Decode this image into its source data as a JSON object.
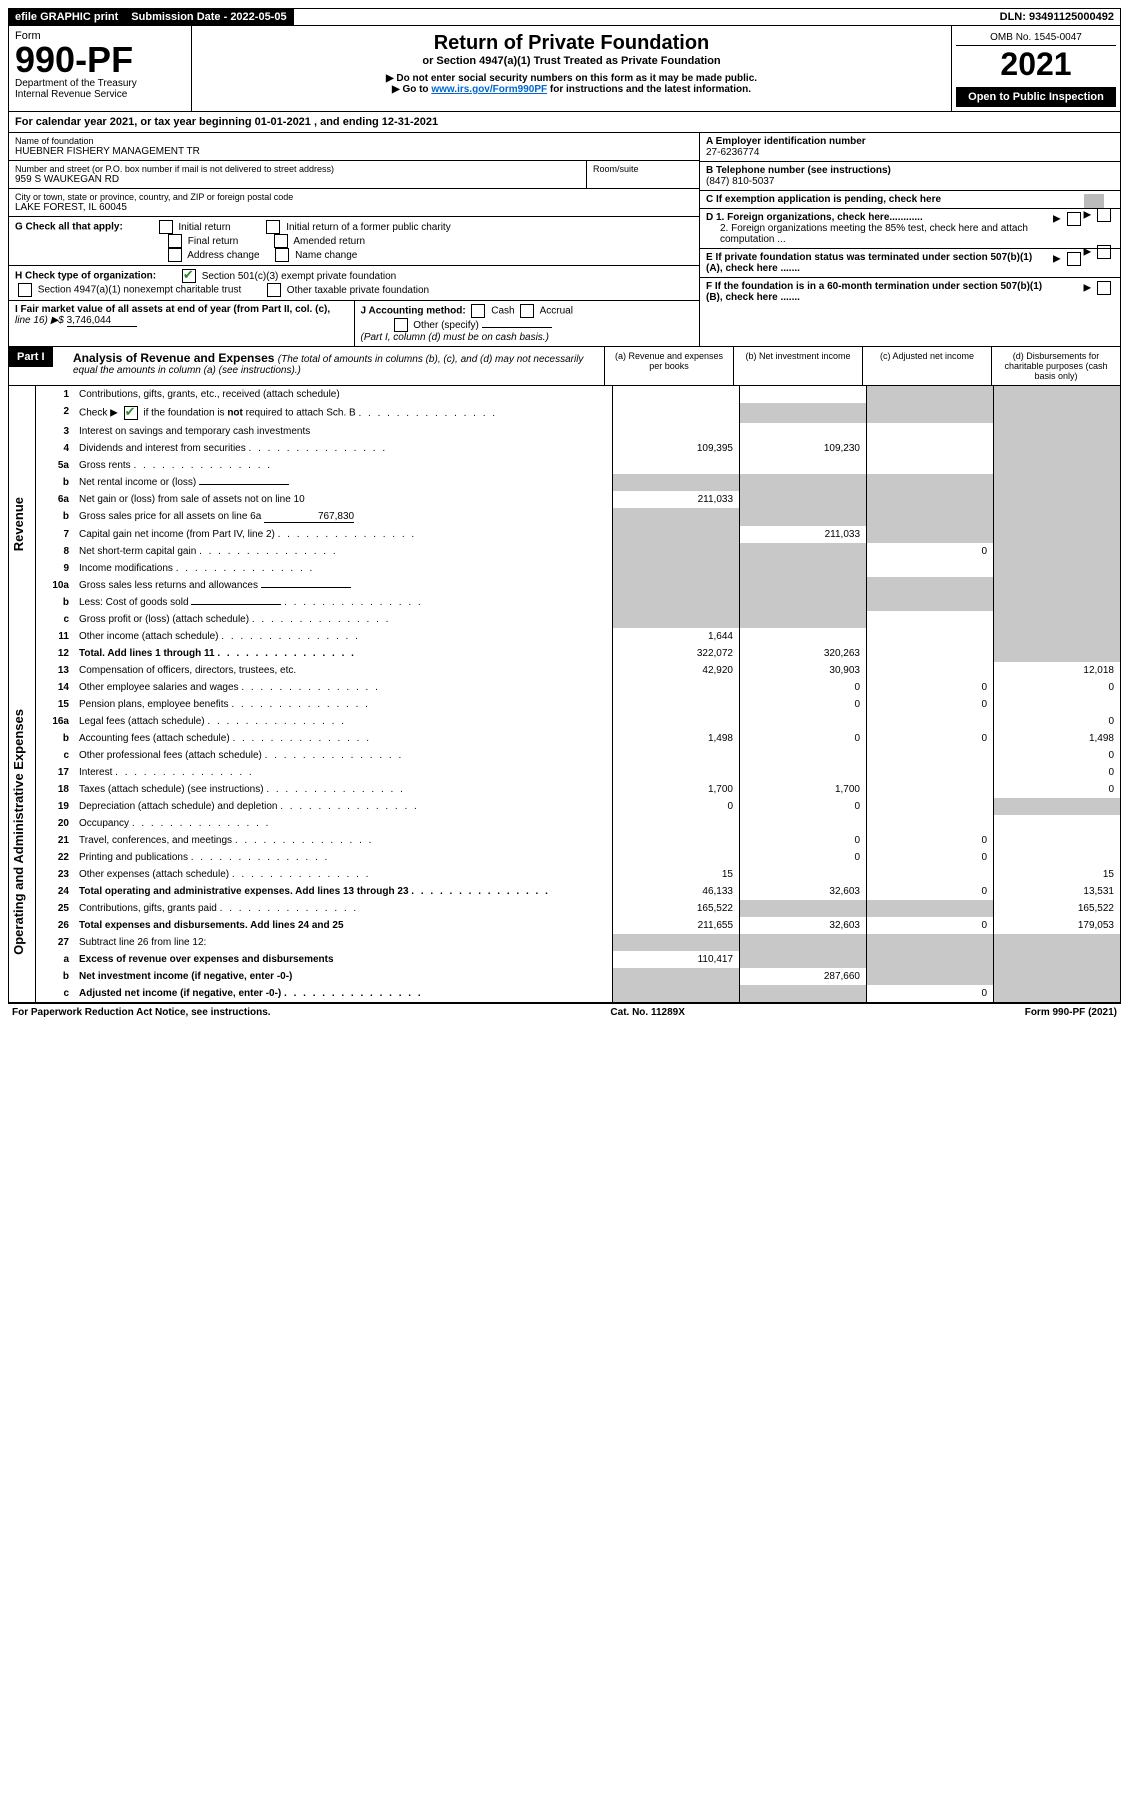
{
  "top": {
    "efile": "efile GRAPHIC print",
    "sub_label": "Submission Date - 2022-05-05",
    "dln": "DLN: 93491125000492"
  },
  "header": {
    "form_label": "Form",
    "form_no": "990-PF",
    "dept": "Department of the Treasury",
    "irs": "Internal Revenue Service",
    "title": "Return of Private Foundation",
    "subtitle": "or Section 4947(a)(1) Trust Treated as Private Foundation",
    "note1": "▶ Do not enter social security numbers on this form as it may be made public.",
    "note2_pre": "▶ Go to ",
    "note2_link": "www.irs.gov/Form990PF",
    "note2_post": " for instructions and the latest information.",
    "omb": "OMB No. 1545-0047",
    "year": "2021",
    "open": "Open to Public Inspection"
  },
  "calyear": "For calendar year 2021, or tax year beginning 01-01-2021            , and ending 12-31-2021",
  "entity": {
    "name_label": "Name of foundation",
    "name": "HUEBNER FISHERY MANAGEMENT TR",
    "addr_label": "Number and street (or P.O. box number if mail is not delivered to street address)",
    "addr": "959 S WAUKEGAN RD",
    "room_label": "Room/suite",
    "city_label": "City or town, state or province, country, and ZIP or foreign postal code",
    "city": "LAKE FOREST, IL  60045"
  },
  "right": {
    "a_label": "A Employer identification number",
    "a_val": "27-6236774",
    "b_label": "B Telephone number (see instructions)",
    "b_val": "(847) 810-5037",
    "c_label": "C If exemption application is pending, check here",
    "d1": "D 1. Foreign organizations, check here............",
    "d2": "2. Foreign organizations meeting the 85% test, check here and attach computation ...",
    "e": "E  If private foundation status was terminated under section 507(b)(1)(A), check here .......",
    "f": "F  If the foundation is in a 60-month termination under section 507(b)(1)(B), check here .......",
    "arrow": "▶"
  },
  "g": {
    "label": "G Check all that apply:",
    "opts": [
      "Initial return",
      "Final return",
      "Address change",
      "Initial return of a former public charity",
      "Amended return",
      "Name change"
    ]
  },
  "h": {
    "label": "H Check type of organization:",
    "opt1": "Section 501(c)(3) exempt private foundation",
    "opt2": "Section 4947(a)(1) nonexempt charitable trust",
    "opt3": "Other taxable private foundation"
  },
  "i": {
    "label": "I Fair market value of all assets at end of year (from Part II, col. (c),",
    "line16": "line 16) ▶$ ",
    "val": "3,746,044"
  },
  "j": {
    "label": "J Accounting method:",
    "cash": "Cash",
    "accrual": "Accrual",
    "other": "Other (specify)",
    "note": "(Part I, column (d) must be on cash basis.)"
  },
  "part1": {
    "label": "Part I",
    "title": "Analysis of Revenue and Expenses ",
    "note": "(The total of amounts in columns (b), (c), and (d) may not necessarily equal the amounts in column (a) (see instructions).)",
    "cols": {
      "a": "(a)   Revenue and expenses per books",
      "b": "(b)   Net investment income",
      "c": "(c)   Adjusted net income",
      "d": "(d)   Disbursements for charitable purposes (cash basis only)"
    }
  },
  "sections": {
    "revenue": "Revenue",
    "expenses": "Operating and Administrative Expenses"
  },
  "rows": [
    {
      "n": "1",
      "d": "Contributions, gifts, grants, etc., received (attach schedule)",
      "a": "",
      "b": "",
      "c": "s",
      "ds": "s"
    },
    {
      "n": "2",
      "d": "Check ▶ [v] if the foundation is not required to attach Sch. B",
      "dot": true,
      "a": "",
      "b": "s",
      "c": "s",
      "ds": "s"
    },
    {
      "n": "3",
      "d": "Interest on savings and temporary cash investments",
      "a": "",
      "b": "",
      "c": "",
      "ds": "s"
    },
    {
      "n": "4",
      "d": "Dividends and interest from securities",
      "dot": true,
      "a": "109,395",
      "b": "109,230",
      "c": "",
      "ds": "s"
    },
    {
      "n": "5a",
      "d": "Gross rents",
      "dot": true,
      "a": "",
      "b": "",
      "c": "",
      "ds": "s"
    },
    {
      "n": "b",
      "d": "Net rental income or (loss)",
      "inline": "",
      "a": "s",
      "b": "s",
      "c": "s",
      "ds": "s"
    },
    {
      "n": "6a",
      "d": "Net gain or (loss) from sale of assets not on line 10",
      "a": "211,033",
      "b": "s",
      "c": "s",
      "ds": "s"
    },
    {
      "n": "b",
      "d": "Gross sales price for all assets on line 6a",
      "inline": "767,830",
      "a": "s",
      "b": "s",
      "c": "s",
      "ds": "s"
    },
    {
      "n": "7",
      "d": "Capital gain net income (from Part IV, line 2)",
      "dot": true,
      "a": "s",
      "b": "211,033",
      "c": "s",
      "ds": "s"
    },
    {
      "n": "8",
      "d": "Net short-term capital gain",
      "dot": true,
      "a": "s",
      "b": "s",
      "c": "0",
      "ds": "s"
    },
    {
      "n": "9",
      "d": "Income modifications",
      "dot": true,
      "a": "s",
      "b": "s",
      "c": "",
      "ds": "s"
    },
    {
      "n": "10a",
      "d": "Gross sales less returns and allowances",
      "inline": "",
      "a": "s",
      "b": "s",
      "c": "s",
      "ds": "s"
    },
    {
      "n": "b",
      "d": "Less: Cost of goods sold",
      "dot": true,
      "inline": "",
      "a": "s",
      "b": "s",
      "c": "s",
      "ds": "s"
    },
    {
      "n": "c",
      "d": "Gross profit or (loss) (attach schedule)",
      "dot": true,
      "a": "s",
      "b": "s",
      "c": "",
      "ds": "s"
    },
    {
      "n": "11",
      "d": "Other income (attach schedule)",
      "dot": true,
      "a": "1,644",
      "b": "",
      "c": "",
      "ds": "s"
    },
    {
      "n": "12",
      "d": "Total. Add lines 1 through 11",
      "dot": true,
      "bold": true,
      "a": "322,072",
      "b": "320,263",
      "c": "",
      "ds": "s"
    }
  ],
  "rows2": [
    {
      "n": "13",
      "d": "Compensation of officers, directors, trustees, etc.",
      "a": "42,920",
      "b": "30,903",
      "c": "",
      "ds": "12,018"
    },
    {
      "n": "14",
      "d": "Other employee salaries and wages",
      "dot": true,
      "a": "",
      "b": "0",
      "c": "0",
      "ds": "0"
    },
    {
      "n": "15",
      "d": "Pension plans, employee benefits",
      "dot": true,
      "a": "",
      "b": "0",
      "c": "0",
      "ds": ""
    },
    {
      "n": "16a",
      "d": "Legal fees (attach schedule)",
      "dot": true,
      "a": "",
      "b": "",
      "c": "",
      "ds": "0"
    },
    {
      "n": "b",
      "d": "Accounting fees (attach schedule)",
      "dot": true,
      "a": "1,498",
      "b": "0",
      "c": "0",
      "ds": "1,498"
    },
    {
      "n": "c",
      "d": "Other professional fees (attach schedule)",
      "dot": true,
      "a": "",
      "b": "",
      "c": "",
      "ds": "0"
    },
    {
      "n": "17",
      "d": "Interest",
      "dot": true,
      "a": "",
      "b": "",
      "c": "",
      "ds": "0"
    },
    {
      "n": "18",
      "d": "Taxes (attach schedule) (see instructions)",
      "dot": true,
      "a": "1,700",
      "b": "1,700",
      "c": "",
      "ds": "0"
    },
    {
      "n": "19",
      "d": "Depreciation (attach schedule) and depletion",
      "dot": true,
      "a": "0",
      "b": "0",
      "c": "",
      "ds": "s"
    },
    {
      "n": "20",
      "d": "Occupancy",
      "dot": true,
      "a": "",
      "b": "",
      "c": "",
      "ds": ""
    },
    {
      "n": "21",
      "d": "Travel, conferences, and meetings",
      "dot": true,
      "a": "",
      "b": "0",
      "c": "0",
      "ds": ""
    },
    {
      "n": "22",
      "d": "Printing and publications",
      "dot": true,
      "a": "",
      "b": "0",
      "c": "0",
      "ds": ""
    },
    {
      "n": "23",
      "d": "Other expenses (attach schedule)",
      "dot": true,
      "a": "15",
      "b": "",
      "c": "",
      "ds": "15"
    },
    {
      "n": "24",
      "d": "Total operating and administrative expenses. Add lines 13 through 23",
      "dot": true,
      "bold": true,
      "a": "46,133",
      "b": "32,603",
      "c": "0",
      "ds": "13,531"
    },
    {
      "n": "25",
      "d": "Contributions, gifts, grants paid",
      "dot": true,
      "a": "165,522",
      "b": "s",
      "c": "s",
      "ds": "165,522"
    },
    {
      "n": "26",
      "d": "Total expenses and disbursements. Add lines 24 and 25",
      "bold": true,
      "a": "211,655",
      "b": "32,603",
      "c": "0",
      "ds": "179,053"
    },
    {
      "n": "27",
      "d": "Subtract line 26 from line 12:",
      "a": "s",
      "b": "s",
      "c": "s",
      "ds": "s"
    },
    {
      "n": "a",
      "d": "Excess of revenue over expenses and disbursements",
      "bold": true,
      "a": "110,417",
      "b": "s",
      "c": "s",
      "ds": "s"
    },
    {
      "n": "b",
      "d": "Net investment income (if negative, enter -0-)",
      "bold": true,
      "a": "s",
      "b": "287,660",
      "c": "s",
      "ds": "s"
    },
    {
      "n": "c",
      "d": "Adjusted net income (if negative, enter -0-)",
      "dot": true,
      "bold": true,
      "a": "s",
      "b": "s",
      "c": "0",
      "ds": "s"
    }
  ],
  "footer": {
    "left": "For Paperwork Reduction Act Notice, see instructions.",
    "mid": "Cat. No. 11289X",
    "right": "Form 990-PF (2021)"
  }
}
